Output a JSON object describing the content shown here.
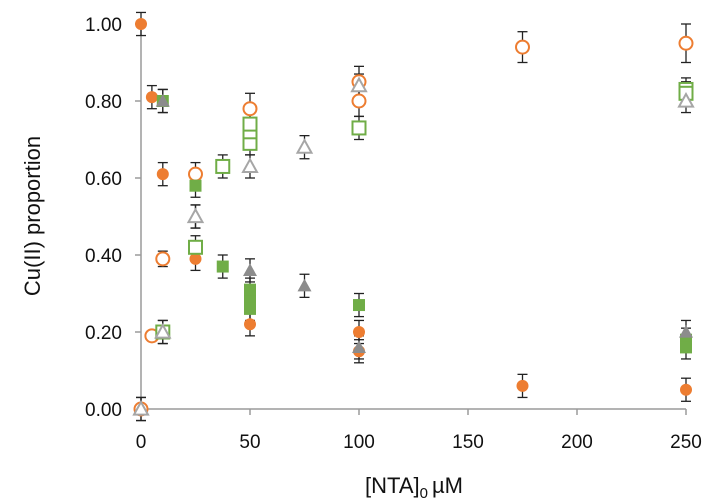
{
  "chart_data": {
    "type": "scatter",
    "title": "",
    "xlabel_main": "[NTA]",
    "xlabel_sub": "0",
    "xlabel_unit": "µM",
    "ylabel": "Cu(II) proportion",
    "xlim": [
      0,
      250
    ],
    "ylim": [
      0,
      1.0
    ],
    "x_ticks": [
      "0",
      "50",
      "100",
      "150",
      "200",
      "250"
    ],
    "y_ticks": [
      "0.00",
      "0.20",
      "0.40",
      "0.60",
      "0.80",
      "1.00"
    ],
    "grid": false,
    "legend": "none",
    "series": [
      {
        "marker": "circle-filled",
        "color": "#ED7D31",
        "points": [
          {
            "x": 0,
            "y": 1.0,
            "err": 0.03
          },
          {
            "x": 5,
            "y": 0.81,
            "err": 0.03
          },
          {
            "x": 10,
            "y": 0.61,
            "err": 0.03
          },
          {
            "x": 25,
            "y": 0.39,
            "err": 0.03
          },
          {
            "x": 50,
            "y": 0.22,
            "err": 0.03
          },
          {
            "x": 100,
            "y": 0.2,
            "err": 0.03
          },
          {
            "x": 100,
            "y": 0.15,
            "err": 0.03
          },
          {
            "x": 175,
            "y": 0.06,
            "err": 0.03
          },
          {
            "x": 250,
            "y": 0.05,
            "err": 0.03
          }
        ]
      },
      {
        "marker": "circle-open",
        "color": "#ED7D31",
        "points": [
          {
            "x": 0,
            "y": 0.0,
            "err": 0.03
          },
          {
            "x": 5,
            "y": 0.19,
            "err": 0.01
          },
          {
            "x": 10,
            "y": 0.39,
            "err": 0.02
          },
          {
            "x": 25,
            "y": 0.61,
            "err": 0.03
          },
          {
            "x": 50,
            "y": 0.78,
            "err": 0.04
          },
          {
            "x": 100,
            "y": 0.8,
            "err": 0.04
          },
          {
            "x": 100,
            "y": 0.85,
            "err": 0.04
          },
          {
            "x": 175,
            "y": 0.94,
            "err": 0.04
          },
          {
            "x": 250,
            "y": 0.95,
            "err": 0.05
          }
        ]
      },
      {
        "marker": "square-filled",
        "color": "#70AD47",
        "points": [
          {
            "x": 10,
            "y": 0.8,
            "err": 0.03
          },
          {
            "x": 25,
            "y": 0.58,
            "err": 0.03
          },
          {
            "x": 37.5,
            "y": 0.37,
            "err": 0.03
          },
          {
            "x": 50,
            "y": 0.31,
            "err": 0.03
          },
          {
            "x": 50,
            "y": 0.28,
            "err": 0.03
          },
          {
            "x": 50,
            "y": 0.26,
            "err": 0.03
          },
          {
            "x": 100,
            "y": 0.27,
            "err": 0.03
          },
          {
            "x": 250,
            "y": 0.18,
            "err": 0.03
          },
          {
            "x": 250,
            "y": 0.16,
            "err": 0.03
          }
        ]
      },
      {
        "marker": "square-open",
        "color": "#70AD47",
        "points": [
          {
            "x": 10,
            "y": 0.2,
            "err": 0.03
          },
          {
            "x": 25,
            "y": 0.42,
            "err": 0.03
          },
          {
            "x": 37.5,
            "y": 0.63,
            "err": 0.03
          },
          {
            "x": 50,
            "y": 0.69,
            "err": 0.03
          },
          {
            "x": 50,
            "y": 0.72,
            "err": 0.03
          },
          {
            "x": 50,
            "y": 0.74,
            "err": 0.03
          },
          {
            "x": 100,
            "y": 0.73,
            "err": 0.03
          },
          {
            "x": 250,
            "y": 0.83,
            "err": 0.03
          },
          {
            "x": 250,
            "y": 0.82,
            "err": 0.03
          }
        ]
      },
      {
        "marker": "triangle-filled",
        "color": "#8C8C8C",
        "points": [
          {
            "x": 10,
            "y": 0.8,
            "err": 0.03
          },
          {
            "x": 25,
            "y": 0.5,
            "err": 0.03
          },
          {
            "x": 50,
            "y": 0.36,
            "err": 0.03
          },
          {
            "x": 75,
            "y": 0.32,
            "err": 0.03
          },
          {
            "x": 100,
            "y": 0.16,
            "err": 0.03
          },
          {
            "x": 250,
            "y": 0.2,
            "err": 0.03
          }
        ]
      },
      {
        "marker": "triangle-open",
        "color": "#A6A6A6",
        "points": [
          {
            "x": 0,
            "y": 0.0,
            "err": 0.03
          },
          {
            "x": 10,
            "y": 0.2,
            "err": 0.03
          },
          {
            "x": 25,
            "y": 0.5,
            "err": 0.03
          },
          {
            "x": 50,
            "y": 0.63,
            "err": 0.03
          },
          {
            "x": 75,
            "y": 0.68,
            "err": 0.03
          },
          {
            "x": 100,
            "y": 0.84,
            "err": 0.03
          },
          {
            "x": 250,
            "y": 0.8,
            "err": 0.03
          }
        ]
      }
    ]
  }
}
